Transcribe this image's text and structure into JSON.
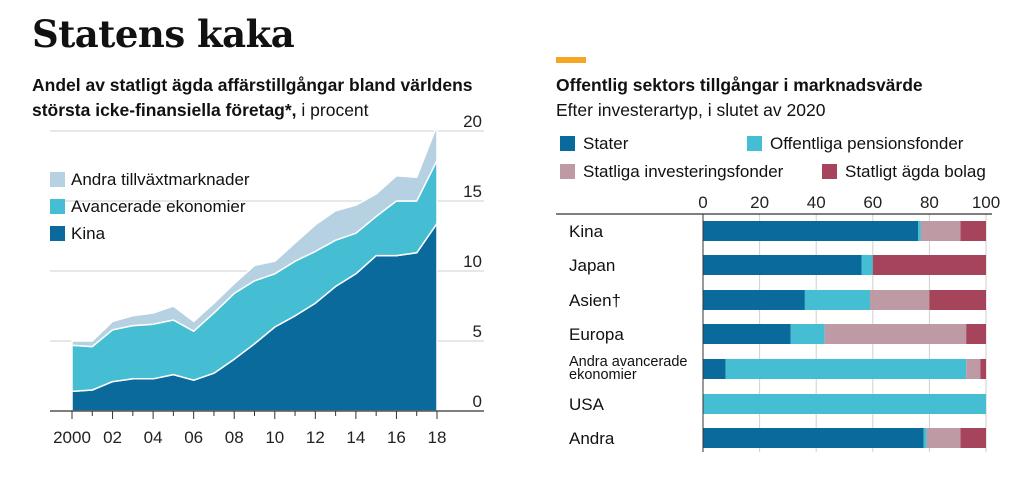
{
  "title": "Statens kaka",
  "accent_color": "#f5a623",
  "colors": {
    "kina": "#0a6a9c",
    "avancerade": "#45bdd3",
    "andra_tillvaxt": "#b6d1e1",
    "stater": "#0a6a9c",
    "pension": "#45bdd3",
    "fonder": "#bd9aa4",
    "bolag": "#a5445b",
    "gridline": "#cfcfcf"
  },
  "left": {
    "subtitle_bold": "Andel av statligt ägda affärstillgångar bland världens största icke-finansiella företag*,",
    "subtitle_normal": " i procent"
  },
  "right": {
    "subtitle_bold": "Offentlig sektors tillgångar i marknadsvärde",
    "subtitle_line2": "Efter investerartyp, i slutet av 2020"
  },
  "chart_data": [
    {
      "type": "area",
      "stacked": true,
      "x": [
        2000,
        2001,
        2002,
        2003,
        2004,
        2005,
        2006,
        2007,
        2008,
        2009,
        2010,
        2011,
        2012,
        2013,
        2014,
        2015,
        2016,
        2017,
        2018
      ],
      "xtick_labels": [
        "2000",
        "02",
        "04",
        "06",
        "08",
        "10",
        "12",
        "14",
        "16",
        "18"
      ],
      "xtick_values": [
        2000,
        2002,
        2004,
        2006,
        2008,
        2010,
        2012,
        2014,
        2016,
        2018
      ],
      "ylim": [
        0,
        20
      ],
      "ytick_values": [
        0,
        5,
        10,
        15,
        20
      ],
      "ytick_labels": [
        "0",
        "5",
        "10",
        "15",
        "20"
      ],
      "y_axis_side": "right",
      "grid": true,
      "legend": "top-left",
      "series": [
        {
          "name": "Kina",
          "color_key": "kina",
          "values": [
            1.4,
            1.5,
            2.1,
            2.3,
            2.3,
            2.6,
            2.2,
            2.7,
            3.7,
            4.8,
            6.0,
            6.8,
            7.7,
            8.9,
            9.8,
            11.1,
            11.1,
            11.3,
            13.4
          ]
        },
        {
          "name": "Avancerade ekonomier",
          "color_key": "avancerade",
          "values": [
            3.3,
            3.1,
            3.7,
            3.8,
            3.9,
            3.9,
            3.5,
            4.3,
            4.7,
            4.5,
            3.8,
            3.9,
            3.7,
            3.3,
            2.9,
            2.8,
            3.9,
            3.7,
            4.5
          ]
        },
        {
          "name": "Andra tillväxtmarknader",
          "color_key": "andra_tillvaxt",
          "values": [
            0.3,
            0.4,
            0.6,
            0.7,
            0.8,
            1.0,
            0.7,
            0.7,
            0.7,
            1.1,
            0.9,
            1.3,
            1.9,
            2.1,
            2.0,
            1.6,
            1.8,
            1.7,
            2.5
          ]
        }
      ]
    },
    {
      "type": "bar",
      "orientation": "horizontal",
      "stacked": true,
      "xlim": [
        0,
        100
      ],
      "xtick_values": [
        0,
        20,
        40,
        60,
        80,
        100
      ],
      "xtick_labels": [
        "0",
        "20",
        "40",
        "60",
        "80",
        "100"
      ],
      "x_axis_side": "top",
      "grid": true,
      "legend": "top",
      "categories": [
        "Kina",
        "Japan",
        "Asien†",
        "Europa",
        "Andra avancerade ekonomier",
        "USA",
        "Andra"
      ],
      "series": [
        {
          "name": "Stater",
          "color_key": "stater",
          "values": [
            76,
            56,
            36,
            31,
            8,
            0,
            78
          ]
        },
        {
          "name": "Offentliga pensionsfonder",
          "color_key": "pension",
          "values": [
            1,
            4,
            23,
            12,
            85,
            100,
            1
          ]
        },
        {
          "name": "Statliga investeringsfonder",
          "color_key": "fonder",
          "values": [
            14,
            0,
            21,
            50,
            5,
            0,
            12
          ]
        },
        {
          "name": "Statligt ägda bolag",
          "color_key": "bolag",
          "values": [
            9,
            40,
            20,
            7,
            2,
            0,
            9
          ]
        }
      ]
    }
  ]
}
